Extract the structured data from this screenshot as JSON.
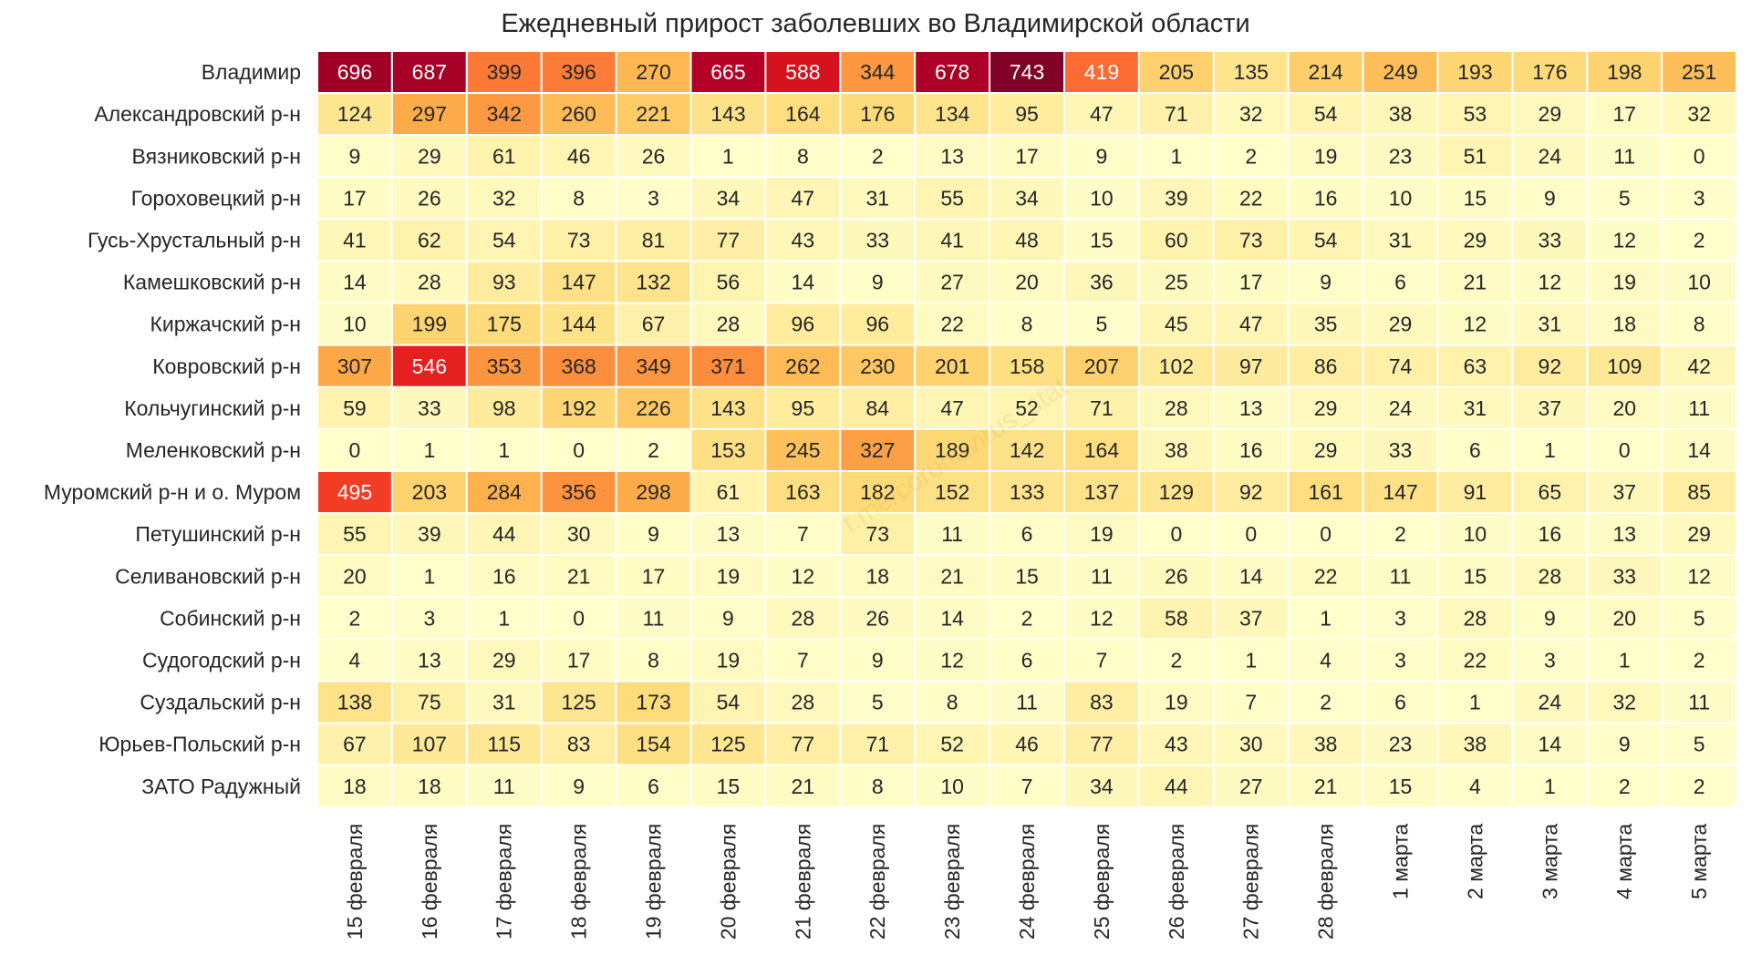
{
  "chart_data": {
    "type": "heatmap",
    "title": "Ежедневный прирост заболевших во Владимирской области",
    "colormap": "YlOrRd",
    "cell_border_color": "#ffffff",
    "watermark": "t.me/coronavirus_stat",
    "columns": [
      "15 февраля",
      "16 февраля",
      "17 февраля",
      "18 февраля",
      "19 февраля",
      "20 февраля",
      "21 февраля",
      "22 февраля",
      "23 февраля",
      "24 февраля",
      "25 февраля",
      "26 февраля",
      "27 февраля",
      "28 февраля",
      "1 марта",
      "2 марта",
      "3 марта",
      "4 марта",
      "5 марта"
    ],
    "rows": [
      "Владимир",
      "Александровский р-н",
      "Вязниковский р-н",
      "Гороховецкий р-н",
      "Гусь-Хрустальный р-н",
      "Камешковский р-н",
      "Киржачский р-н",
      "Ковровский р-н",
      "Кольчугинский р-н",
      "Меленковский р-н",
      "Муромский р-н и о. Муром",
      "Петушинский р-н",
      "Селивановский р-н",
      "Собинский р-н",
      "Судогодский р-н",
      "Суздальский р-н",
      "Юрьев-Польский р-н",
      "ЗАТО Радужный"
    ],
    "values": [
      [
        696,
        687,
        399,
        396,
        270,
        665,
        588,
        344,
        678,
        743,
        419,
        205,
        135,
        214,
        249,
        193,
        176,
        198,
        251
      ],
      [
        124,
        297,
        342,
        260,
        221,
        143,
        164,
        176,
        134,
        95,
        47,
        71,
        32,
        54,
        38,
        53,
        29,
        17,
        32
      ],
      [
        9,
        29,
        61,
        46,
        26,
        1,
        8,
        2,
        13,
        17,
        9,
        1,
        2,
        19,
        23,
        51,
        24,
        11,
        0
      ],
      [
        17,
        26,
        32,
        8,
        3,
        34,
        47,
        31,
        55,
        34,
        10,
        39,
        22,
        16,
        10,
        15,
        9,
        5,
        3
      ],
      [
        41,
        62,
        54,
        73,
        81,
        77,
        43,
        33,
        41,
        48,
        15,
        60,
        73,
        54,
        31,
        29,
        33,
        12,
        2
      ],
      [
        14,
        28,
        93,
        147,
        132,
        56,
        14,
        9,
        27,
        20,
        36,
        25,
        17,
        9,
        6,
        21,
        12,
        19,
        10
      ],
      [
        10,
        199,
        175,
        144,
        67,
        28,
        96,
        96,
        22,
        8,
        5,
        45,
        47,
        35,
        29,
        12,
        31,
        18,
        8
      ],
      [
        307,
        546,
        353,
        368,
        349,
        371,
        262,
        230,
        201,
        158,
        207,
        102,
        97,
        86,
        74,
        63,
        92,
        109,
        42
      ],
      [
        59,
        33,
        98,
        192,
        226,
        143,
        95,
        84,
        47,
        52,
        71,
        28,
        13,
        29,
        24,
        31,
        37,
        20,
        11
      ],
      [
        0,
        1,
        1,
        0,
        2,
        153,
        245,
        327,
        189,
        142,
        164,
        38,
        16,
        29,
        33,
        6,
        1,
        0,
        14
      ],
      [
        495,
        203,
        284,
        356,
        298,
        61,
        163,
        182,
        152,
        133,
        137,
        129,
        92,
        161,
        147,
        91,
        65,
        37,
        85
      ],
      [
        55,
        39,
        44,
        30,
        9,
        13,
        7,
        73,
        11,
        6,
        19,
        0,
        0,
        0,
        2,
        10,
        16,
        13,
        29
      ],
      [
        20,
        1,
        16,
        21,
        17,
        19,
        12,
        18,
        21,
        15,
        11,
        26,
        14,
        22,
        11,
        15,
        28,
        33,
        12
      ],
      [
        2,
        3,
        1,
        0,
        11,
        9,
        28,
        26,
        14,
        2,
        12,
        58,
        37,
        1,
        3,
        28,
        9,
        20,
        5
      ],
      [
        4,
        13,
        29,
        17,
        8,
        19,
        7,
        9,
        12,
        6,
        7,
        2,
        1,
        4,
        3,
        22,
        3,
        1,
        2
      ],
      [
        138,
        75,
        31,
        125,
        173,
        54,
        28,
        5,
        8,
        11,
        83,
        19,
        7,
        2,
        6,
        1,
        24,
        32,
        11
      ],
      [
        67,
        107,
        115,
        83,
        154,
        125,
        77,
        71,
        52,
        46,
        77,
        43,
        30,
        38,
        23,
        38,
        14,
        9,
        5
      ],
      [
        18,
        18,
        11,
        9,
        6,
        15,
        21,
        8,
        10,
        7,
        34,
        44,
        27,
        21,
        15,
        4,
        1,
        2,
        2
      ]
    ]
  }
}
